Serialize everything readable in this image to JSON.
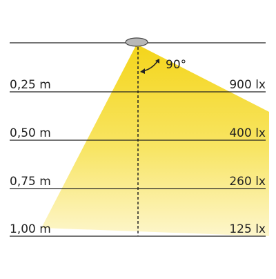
{
  "angle": "90°",
  "rows": [
    {
      "distance": "0,25 m",
      "illuminance": "900 lx"
    },
    {
      "distance": "0,50 m",
      "illuminance": "400 lx"
    },
    {
      "distance": "0,75 m",
      "illuminance": "260 lx"
    },
    {
      "distance": "1,00 m",
      "illuminance": "125 lx"
    }
  ]
}
